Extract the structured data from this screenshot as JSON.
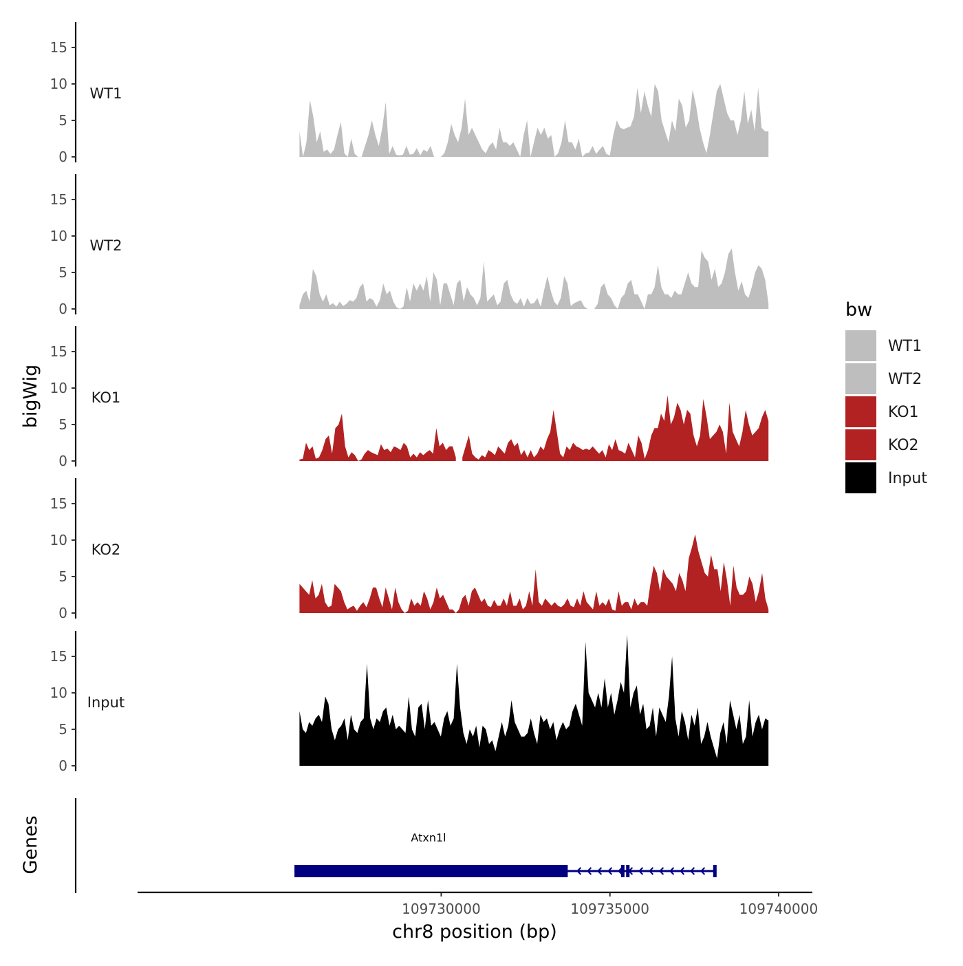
{
  "chart_data": {
    "type": "area",
    "region": {
      "chromosome": "chr8",
      "start": 109725800,
      "end": 109739700
    },
    "xlabel": "chr8 position (bp)",
    "x_ticks": [
      {
        "value": 109730000,
        "label": "109730000"
      },
      {
        "value": 109735000,
        "label": "109735000"
      },
      {
        "value": 109740000,
        "label": "109740000"
      }
    ],
    "xlim": [
      109721000,
      109741000
    ],
    "ylabel_tracks": "bigWig",
    "ylabel_genes": "Genes",
    "ylim": [
      0,
      18
    ],
    "y_ticks": [
      {
        "value": 0,
        "label": "0"
      },
      {
        "value": 5,
        "label": "5"
      },
      {
        "value": 10,
        "label": "10"
      },
      {
        "value": 15,
        "label": "15"
      }
    ],
    "series": [
      {
        "name": "WT1",
        "color": "#bebebe",
        "values": [
          3.5,
          0,
          2,
          7.8,
          5.5,
          2,
          3.5,
          0.7,
          1,
          0.4,
          1,
          3,
          4.8,
          0.5,
          0,
          2.5,
          0.4,
          0,
          0,
          1.5,
          3,
          5,
          3,
          1.5,
          4,
          7.5,
          0.4,
          1.5,
          0.3,
          0.2,
          0.3,
          1.5,
          0.3,
          0.4,
          1.2,
          0.2,
          1,
          0.7,
          1.5,
          0,
          null,
          0,
          0.5,
          2,
          4.5,
          3,
          2,
          4,
          8,
          3,
          4,
          3,
          2,
          1,
          0.5,
          1.5,
          2,
          1,
          4,
          2,
          2,
          1.5,
          2,
          1,
          0,
          3,
          5,
          0,
          2,
          4,
          3,
          4,
          2.5,
          3,
          0,
          0.5,
          2,
          5,
          2,
          2,
          1,
          2.5,
          0,
          0.5,
          0.6,
          1.5,
          0.4,
          1,
          1.5,
          0.4,
          0.2,
          3,
          5,
          4,
          3.8,
          4,
          4.2,
          5.5,
          9.5,
          6,
          9,
          7,
          5.5,
          10,
          9,
          5,
          3.5,
          2,
          5,
          3.5,
          8,
          7,
          4,
          5,
          9.2,
          7,
          4,
          2,
          0.5,
          3,
          6,
          9,
          10,
          8,
          6,
          5,
          5,
          3,
          5,
          9,
          4.5,
          6.5,
          3.5,
          9.5,
          4,
          3.5,
          3.5
        ]
      },
      {
        "name": "WT2",
        "color": "#bebebe",
        "values": [
          0.5,
          2,
          2.5,
          1,
          5.5,
          4.5,
          2,
          1,
          2,
          0.5,
          0.8,
          0.3,
          1,
          0.4,
          0.7,
          1.2,
          1,
          1.5,
          3,
          3.5,
          1,
          1.5,
          1.2,
          0.3,
          1.2,
          3.5,
          2,
          2.5,
          1,
          0.2,
          0,
          0.3,
          3,
          1,
          3.5,
          2.5,
          3.5,
          2.5,
          4.5,
          1,
          5,
          4,
          0.5,
          3.5,
          3.5,
          2,
          0.5,
          3.5,
          4,
          1,
          3,
          2,
          1.5,
          0.5,
          1.5,
          6.5,
          1,
          1.5,
          2,
          0.5,
          1,
          3.5,
          4,
          2,
          1,
          0.7,
          1.5,
          0.3,
          1.5,
          0.7,
          0.8,
          1.5,
          0.3,
          2.5,
          4.5,
          2.5,
          1,
          0.5,
          1.5,
          4.5,
          3.5,
          0.4,
          0.8,
          1,
          1.2,
          0.3,
          0,
          null,
          0,
          0.7,
          3,
          3.5,
          2,
          1.5,
          0.5,
          0,
          1.5,
          2,
          3.5,
          4,
          2,
          2,
          1,
          0,
          2,
          2,
          3,
          6,
          3,
          2,
          2,
          1.5,
          2.5,
          2,
          2,
          3.5,
          5,
          3.5,
          3,
          3,
          8,
          7,
          6.5,
          4,
          5.5,
          3,
          3.5,
          5,
          7.5,
          8.3,
          5,
          2.5,
          3.8,
          2,
          1.5,
          3,
          5,
          6,
          5.5,
          4,
          0.7
        ]
      },
      {
        "name": "KO1",
        "color": "#b22222",
        "values": [
          0.2,
          0.3,
          2.5,
          1.5,
          2,
          0.3,
          0.5,
          1.5,
          3,
          3.5,
          1,
          4.5,
          5,
          6.5,
          2,
          0.5,
          1.2,
          0.8,
          0,
          0.2,
          1,
          1.5,
          1.2,
          1,
          0.8,
          2.3,
          1.5,
          1.7,
          1.2,
          2,
          1.8,
          1.5,
          2.5,
          2,
          0.5,
          1,
          0.5,
          1.2,
          0.8,
          1.2,
          1.5,
          1,
          4.5,
          2,
          2.5,
          1.5,
          2,
          2,
          0.5,
          null,
          0.5,
          2,
          3.5,
          1,
          0.5,
          0.2,
          0.8,
          0.5,
          1.5,
          1.2,
          0.8,
          2,
          1.5,
          1,
          2.5,
          3,
          2,
          2.5,
          0.8,
          1.5,
          0.5,
          1.5,
          0.5,
          1,
          2,
          1.5,
          3,
          4,
          7,
          4,
          1,
          0.5,
          2,
          1.5,
          2.5,
          2,
          1.8,
          1.5,
          1.7,
          1.5,
          2,
          1.5,
          1,
          1.5,
          0.5,
          2.3,
          1.5,
          3,
          1.5,
          1.3,
          1,
          2.5,
          1.5,
          0.5,
          3.5,
          2.5,
          0.3,
          1.5,
          3.5,
          4.5,
          4.5,
          6.5,
          5.5,
          9,
          5,
          6,
          8,
          7,
          5,
          7,
          6.5,
          3.5,
          2,
          3.5,
          8.5,
          6,
          3,
          3.5,
          4,
          5,
          4,
          1,
          8,
          4,
          3,
          2,
          4,
          7,
          5,
          3.5,
          4,
          4.5,
          6,
          7,
          5.5
        ]
      },
      {
        "name": "KO2",
        "color": "#b22222",
        "values": [
          4,
          3.5,
          3,
          2.5,
          4.5,
          2,
          2.5,
          4,
          1.5,
          0.8,
          1,
          4,
          3.5,
          3,
          1.5,
          0.5,
          0.8,
          1,
          0.3,
          1,
          1.5,
          0.8,
          2,
          3.5,
          3.5,
          2,
          0.8,
          3.5,
          2,
          0.5,
          3.5,
          1.5,
          0.5,
          0,
          0.3,
          2,
          1,
          1.5,
          1,
          3,
          2,
          0.5,
          1.5,
          3.5,
          2,
          2.5,
          1.5,
          0.5,
          0.5,
          0,
          0.5,
          2,
          2.5,
          1,
          3,
          3.5,
          2.5,
          1.5,
          2,
          1,
          0.8,
          1.8,
          1,
          1,
          2,
          1,
          3,
          1,
          1,
          2,
          0.5,
          1,
          3,
          1,
          6,
          1.5,
          1,
          2,
          1.5,
          1,
          1.5,
          1,
          0.8,
          1.2,
          2,
          1,
          0.8,
          2,
          1,
          3,
          1.5,
          1,
          0.5,
          3,
          1,
          1.5,
          1,
          2,
          0.5,
          0.3,
          3,
          1,
          1.5,
          1.5,
          0.5,
          2,
          1,
          1.5,
          1.5,
          1,
          4,
          6.5,
          5.5,
          3,
          6,
          5,
          4.5,
          4,
          3,
          5.5,
          4.5,
          3,
          7.5,
          9,
          10.8,
          8.5,
          7,
          5.5,
          5,
          8,
          6,
          6,
          3,
          7,
          4.5,
          1,
          6.5,
          3.5,
          2.5,
          2.5,
          3,
          5,
          4,
          1.5,
          3,
          5.5,
          2,
          0.5
        ]
      },
      {
        "name": "Input",
        "color": "#000000",
        "values": [
          7.5,
          5,
          4.5,
          6,
          5.5,
          6.5,
          7,
          6,
          9.5,
          8.5,
          5,
          3.5,
          5,
          5.5,
          6.5,
          3.5,
          7,
          5,
          4.5,
          6,
          6.5,
          14,
          6.5,
          5,
          6.5,
          6,
          7.5,
          8,
          5.5,
          7,
          5,
          5.5,
          5,
          4.5,
          9.5,
          5,
          4,
          8,
          8.5,
          5,
          9,
          5.5,
          6,
          5,
          4,
          6.5,
          7.5,
          5.5,
          6.5,
          14,
          8,
          4.5,
          3,
          5,
          4,
          5.5,
          2.5,
          5.5,
          5,
          3,
          3.5,
          2,
          4,
          6,
          4,
          5.5,
          9,
          6,
          5,
          4,
          4,
          4.5,
          6.5,
          4.5,
          3,
          7,
          6,
          6.5,
          5,
          6,
          3.5,
          5,
          6,
          5,
          5.5,
          7.5,
          8.5,
          7,
          5.5,
          17,
          10,
          9,
          8,
          10,
          8,
          12,
          8,
          10,
          7,
          9,
          11.5,
          10,
          18,
          8,
          10,
          11,
          7,
          8.5,
          5,
          5.5,
          8,
          4,
          8,
          7,
          6,
          9.5,
          15,
          6.5,
          4,
          7.5,
          6,
          3.5,
          7,
          5.5,
          8,
          3,
          4,
          6,
          4,
          2.5,
          1,
          4.5,
          6,
          3,
          9,
          7,
          5,
          7,
          3,
          4,
          9,
          4,
          6,
          7,
          5,
          6.5,
          6.2
        ]
      }
    ],
    "legend": {
      "title": "bw",
      "position": "right",
      "entries": [
        {
          "label": "WT1",
          "color": "#bebebe"
        },
        {
          "label": "WT2",
          "color": "#bebebe"
        },
        {
          "label": "KO1",
          "color": "#b22222"
        },
        {
          "label": "KO2",
          "color": "#b22222"
        },
        {
          "label": "Input",
          "color": "#000000"
        }
      ]
    },
    "genes": [
      {
        "name": "Atxn1l",
        "color": "#000080",
        "strand": "-",
        "start": 109725650,
        "end": 109738140,
        "thick_start": 109725650,
        "thick_end": 109733750,
        "blocks": [
          [
            109725650,
            109733750
          ],
          [
            109735330,
            109735380
          ],
          [
            109735480,
            109735560
          ],
          [
            109738060,
            109738140
          ]
        ]
      }
    ]
  }
}
